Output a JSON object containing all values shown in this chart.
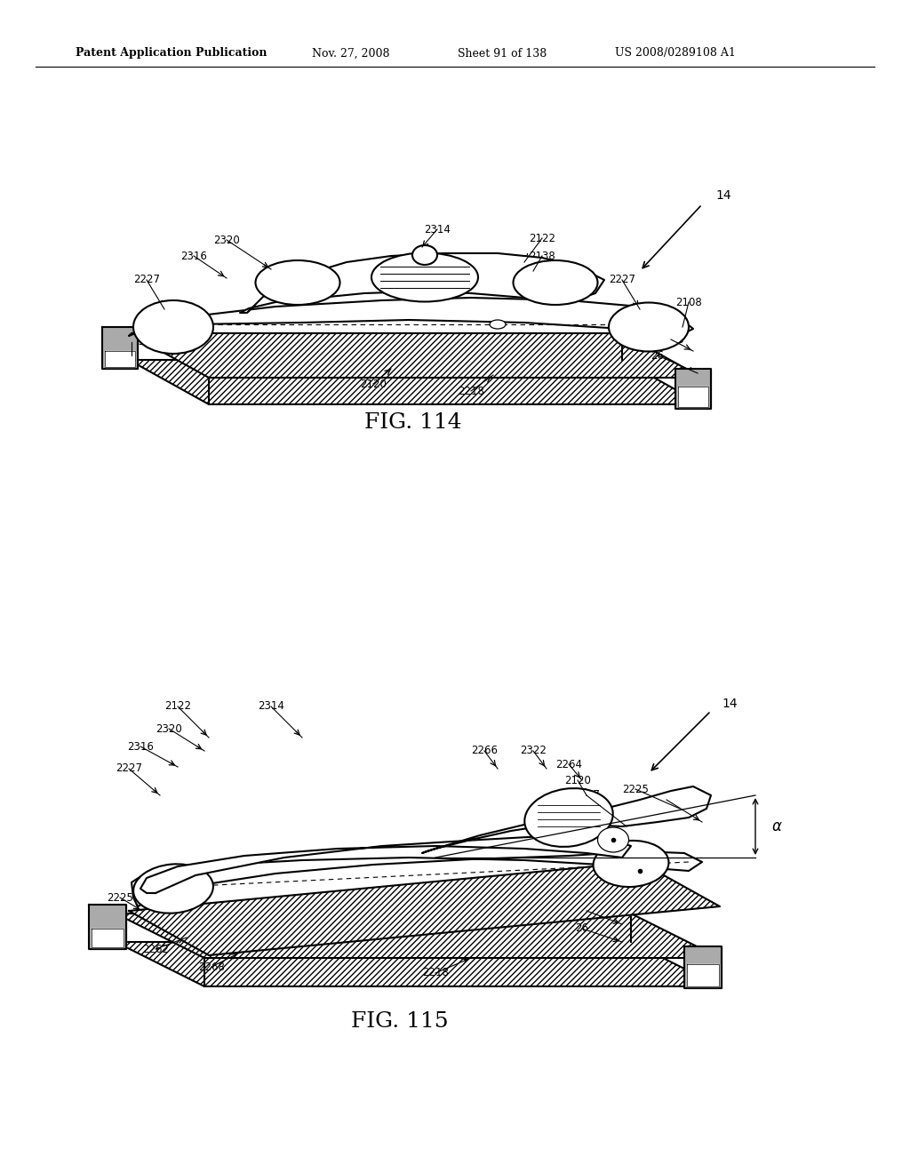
{
  "background_color": "#ffffff",
  "header_text": "Patent Application Publication",
  "header_date": "Nov. 27, 2008",
  "header_sheet": "Sheet 91 of 138",
  "header_patent": "US 2008/0289108 A1",
  "fig114_caption": "FIG. 114",
  "fig115_caption": "FIG. 115",
  "line_color": "#000000",
  "text_color": "#000000"
}
